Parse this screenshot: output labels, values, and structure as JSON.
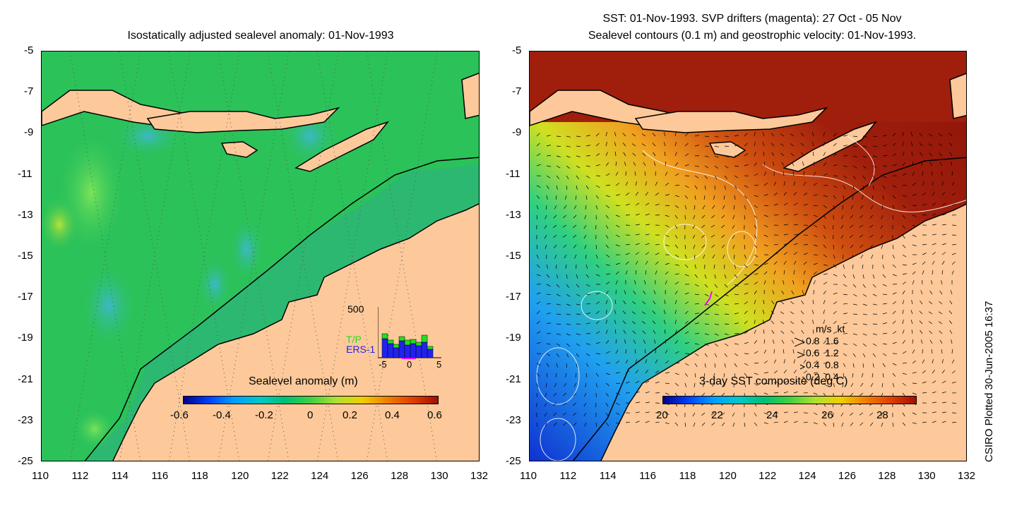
{
  "left": {
    "title": "Isostatically adjusted sealevel anomaly: 01-Nov-1993",
    "colorbar_label": "Sealevel anomaly (m)",
    "colorbar_ticks": [
      "-0.6",
      "-0.4",
      "-0.2",
      "0",
      "0.2",
      "0.4",
      "0.6"
    ],
    "histogram": {
      "ymax_label": "500",
      "legend_tp": "T/P",
      "legend_ers": "ERS-1",
      "x_ticks": [
        "-5",
        "0",
        "5"
      ],
      "tp_color": "#22dd22",
      "ers_color": "#2222ee"
    }
  },
  "right": {
    "title_line1": "SST: 01-Nov-1993. SVP drifters (magenta): 27 Oct - 05 Nov",
    "title_line2": "Sealevel contours (0.1 m) and geostrophic velocity: 01-Nov-1993.",
    "colorbar_label": "3-day SST composite (deg C)",
    "colorbar_ticks": [
      "20",
      "22",
      "24",
      "26",
      "28"
    ],
    "speed_legend": {
      "header": "m/s  kt",
      "rows": [
        "0.8  1.6",
        "0.6  1.2",
        "0.4  0.8",
        "0.2  0.4"
      ]
    }
  },
  "axes": {
    "y_ticks": [
      "-5",
      "-7",
      "-9",
      "-11",
      "-13",
      "-15",
      "-17",
      "-19",
      "-21",
      "-23",
      "-25"
    ],
    "x_ticks": [
      "110",
      "112",
      "114",
      "116",
      "118",
      "120",
      "122",
      "124",
      "126",
      "128",
      "130",
      "132"
    ]
  },
  "credit": "CSIRO Plotted 30-Jun-2005 16:37",
  "colors": {
    "land": "#fdc99a",
    "sea_green": "#2bc25a",
    "sst_warm": "#a01e0c"
  }
}
